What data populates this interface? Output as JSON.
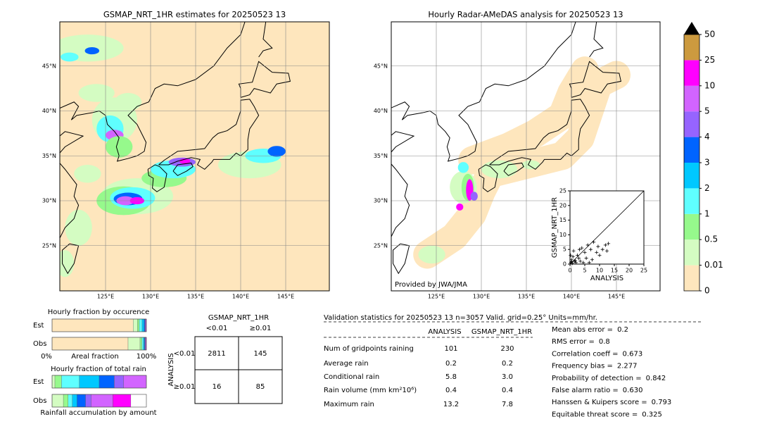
{
  "maps": [
    {
      "title": "GSMAP_NRT_1HR estimates for 20250523 13",
      "lon_ticks": [
        {
          "value": 125,
          "label": "125°E"
        },
        {
          "value": 130,
          "label": "130°E"
        },
        {
          "value": 135,
          "label": "135°E"
        },
        {
          "value": 140,
          "label": "140°E"
        },
        {
          "value": 145,
          "label": "145°E"
        }
      ],
      "lat_ticks": [
        {
          "value": 45,
          "label": "45°N"
        },
        {
          "value": 40,
          "label": "40°N"
        },
        {
          "value": 35,
          "label": "35°N"
        },
        {
          "value": 30,
          "label": "30°N"
        },
        {
          "value": 25,
          "label": "25°N"
        }
      ]
    },
    {
      "title": "Hourly Radar-AMeDAS analysis for 20250523 13",
      "lon_ticks": [
        {
          "value": 125,
          "label": "125°E"
        },
        {
          "value": 130,
          "label": "130°E"
        },
        {
          "value": 135,
          "label": "135°E"
        },
        {
          "value": 140,
          "label": "140°E"
        },
        {
          "value": 145,
          "label": "145°E"
        }
      ],
      "lat_ticks": [
        {
          "value": 45,
          "label": "45°N"
        },
        {
          "value": 40,
          "label": "40°N"
        },
        {
          "value": 35,
          "label": "35°N"
        },
        {
          "value": 30,
          "label": "30°N"
        },
        {
          "value": 25,
          "label": "25°N"
        }
      ],
      "credit": "Provided by JWA/JMA"
    }
  ],
  "colorbar": {
    "levels": [
      0,
      0.01,
      0.5,
      1,
      2,
      3,
      4,
      5,
      10,
      25,
      50
    ],
    "colors": [
      "#fee6bd",
      "#d4fcc2",
      "#96f98c",
      "#5fffff",
      "#00c8ff",
      "#0064ff",
      "#9664ff",
      "#d264ff",
      "#ff00ff",
      "#cc9a3f"
    ]
  },
  "scatter": {
    "x_label": "ANALYSIS",
    "y_label": "GSMAP_NRT_1HR",
    "xlim": [
      0,
      25
    ],
    "ylim": [
      0,
      25
    ],
    "xticks": [
      0,
      5,
      10,
      15,
      20,
      25
    ],
    "yticks": [
      0,
      5,
      10,
      15,
      20,
      25
    ],
    "x": [
      0.3,
      0.5,
      0.8,
      1,
      1.2,
      1.5,
      2,
      2.5,
      3,
      3.5,
      4,
      4.5,
      5,
      5.5,
      6,
      7,
      7.5,
      8,
      9,
      9.5,
      10,
      11,
      12,
      12.5,
      13,
      0.2,
      0.6,
      1.8,
      3.2,
      6.5
    ],
    "y": [
      0.5,
      1.5,
      0.3,
      2.5,
      4.5,
      1,
      0.5,
      3,
      2,
      1,
      5.5,
      0.5,
      4,
      2,
      6.5,
      5,
      1.5,
      7.5,
      4,
      6,
      3,
      5,
      6.5,
      4.5,
      7,
      3,
      0.8,
      1.2,
      5,
      0.5
    ]
  },
  "fraction": {
    "occurrence_title": "Hourly fraction by occurence",
    "rain_title": "Hourly fraction of total rain",
    "est_label": "Est",
    "obs_label": "Obs",
    "axis_left": "0%",
    "axis_mid": "Areal fraction",
    "axis_right": "100%",
    "footer": "Rainfall accumulation by amount",
    "occurrence_est": [
      86,
      4.5,
      2,
      3,
      2,
      1,
      0.5,
      0.7,
      0.3,
      0
    ],
    "occurrence_obs": [
      80.6,
      12.7,
      2,
      1.5,
      1,
      0.7,
      0.5,
      0.7,
      0.3,
      0
    ],
    "rain_est": [
      0,
      3,
      7,
      19,
      21,
      16,
      10,
      24,
      0,
      0
    ],
    "rain_obs": [
      0,
      12,
      5,
      4.5,
      5,
      9,
      6,
      23,
      19,
      0
    ]
  },
  "contingency": {
    "title": "GSMAP_NRT_1HR",
    "col_labels": [
      "<0.01",
      "≥0.01"
    ],
    "row_title": "ANALYSIS",
    "row_labels": [
      "<0.01",
      "≥0.01"
    ],
    "cells": [
      [
        2811,
        145
      ],
      [
        16,
        85
      ]
    ]
  },
  "stats": {
    "header": "Validation statistics for 20250523 13  n=3057 Valid. grid=0.25° Units=mm/hr.",
    "columns": [
      "ANALYSIS",
      "GSMAP_NRT_1HR"
    ],
    "rows": [
      [
        "Num of gridpoints raining",
        "101",
        "230"
      ],
      [
        "Average rain",
        "0.2",
        "0.2"
      ],
      [
        "Conditional rain",
        "5.8",
        "3.0"
      ],
      [
        "Rain volume (mm km²10⁶)",
        "0.4",
        "0.4"
      ],
      [
        "Maximum rain",
        "13.2",
        "7.8"
      ]
    ],
    "scores": [
      [
        "Mean abs error =",
        "0.2"
      ],
      [
        "RMS error =",
        "0.8"
      ],
      [
        "Correlation coeff =",
        "0.673"
      ],
      [
        "Frequency bias =",
        "2.277"
      ],
      [
        "Probability of detection =",
        "0.842"
      ],
      [
        "False alarm ratio =",
        "0.630"
      ],
      [
        "Hanssen & Kuipers score =",
        "0.793"
      ],
      [
        "Equitable threat score =",
        "0.325"
      ]
    ]
  }
}
